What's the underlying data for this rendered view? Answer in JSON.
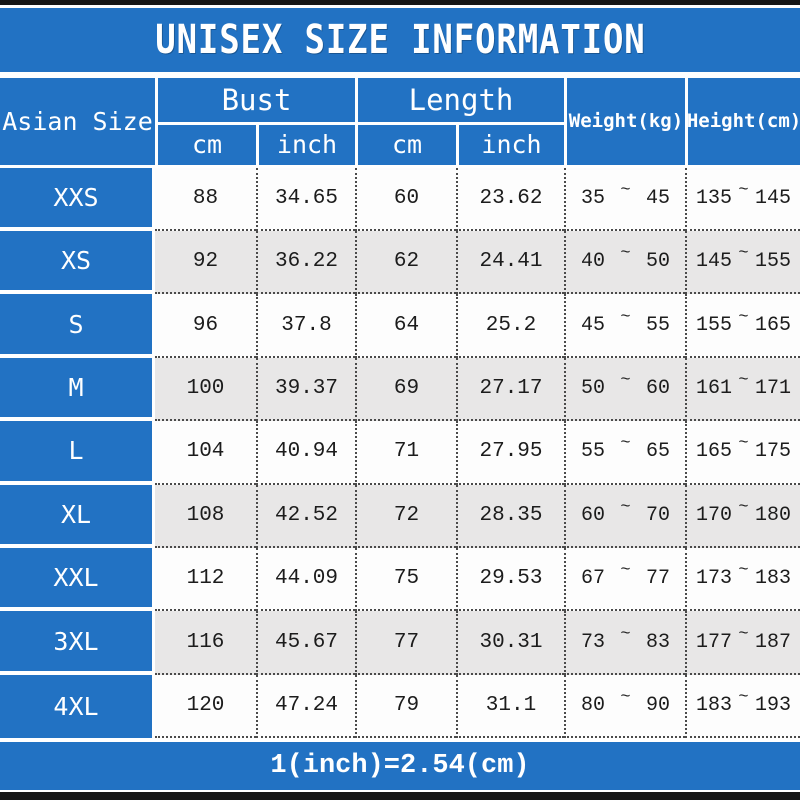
{
  "title": "UNISEX SIZE INFORMATION",
  "header": {
    "size_col": "Asian Size",
    "bust": "Bust",
    "length": "Length",
    "cm": "cm",
    "inch": "inch",
    "weight": "Weight(kg)",
    "height": "Height(cm)"
  },
  "tilde": "~",
  "rows": [
    {
      "size": "XXS",
      "bust_cm": "88",
      "bust_inch": "34.65",
      "length_cm": "60",
      "length_inch": "23.62",
      "weight_min": "35",
      "weight_max": "45",
      "height_min": "135",
      "height_max": "145"
    },
    {
      "size": "XS",
      "bust_cm": "92",
      "bust_inch": "36.22",
      "length_cm": "62",
      "length_inch": "24.41",
      "weight_min": "40",
      "weight_max": "50",
      "height_min": "145",
      "height_max": "155"
    },
    {
      "size": "S",
      "bust_cm": "96",
      "bust_inch": "37.8",
      "length_cm": "64",
      "length_inch": "25.2",
      "weight_min": "45",
      "weight_max": "55",
      "height_min": "155",
      "height_max": "165"
    },
    {
      "size": "M",
      "bust_cm": "100",
      "bust_inch": "39.37",
      "length_cm": "69",
      "length_inch": "27.17",
      "weight_min": "50",
      "weight_max": "60",
      "height_min": "161",
      "height_max": "171"
    },
    {
      "size": "L",
      "bust_cm": "104",
      "bust_inch": "40.94",
      "length_cm": "71",
      "length_inch": "27.95",
      "weight_min": "55",
      "weight_max": "65",
      "height_min": "165",
      "height_max": "175"
    },
    {
      "size": "XL",
      "bust_cm": "108",
      "bust_inch": "42.52",
      "length_cm": "72",
      "length_inch": "28.35",
      "weight_min": "60",
      "weight_max": "70",
      "height_min": "170",
      "height_max": "180"
    },
    {
      "size": "XXL",
      "bust_cm": "112",
      "bust_inch": "44.09",
      "length_cm": "75",
      "length_inch": "29.53",
      "weight_min": "67",
      "weight_max": "77",
      "height_min": "173",
      "height_max": "183"
    },
    {
      "size": "3XL",
      "bust_cm": "116",
      "bust_inch": "45.67",
      "length_cm": "77",
      "length_inch": "30.31",
      "weight_min": "73",
      "weight_max": "83",
      "height_min": "177",
      "height_max": "187"
    },
    {
      "size": "4XL",
      "bust_cm": "120",
      "bust_inch": "47.24",
      "length_cm": "79",
      "length_inch": "31.1",
      "weight_min": "80",
      "weight_max": "90",
      "height_min": "183",
      "height_max": "193"
    }
  ],
  "footer_note": "1(inch)=2.54(cm)",
  "colors": {
    "accent_blue": "#2272c3",
    "alt_row_gray": "#e8e7e7",
    "bar_black": "#161616"
  },
  "chart_data": {
    "type": "table",
    "title": "UNISEX SIZE INFORMATION",
    "columns": [
      "Asian Size",
      "Bust cm",
      "Bust inch",
      "Length cm",
      "Length inch",
      "Weight(kg)",
      "Height(cm)"
    ],
    "rows": [
      [
        "XXS",
        88,
        34.65,
        60,
        23.62,
        "35~45",
        "135~145"
      ],
      [
        "XS",
        92,
        36.22,
        62,
        24.41,
        "40~50",
        "145~155"
      ],
      [
        "S",
        96,
        37.8,
        64,
        25.2,
        "45~55",
        "155~165"
      ],
      [
        "M",
        100,
        39.37,
        69,
        27.17,
        "50~60",
        "161~171"
      ],
      [
        "L",
        104,
        40.94,
        71,
        27.95,
        "55~65",
        "165~175"
      ],
      [
        "XL",
        108,
        42.52,
        72,
        28.35,
        "60~70",
        "170~180"
      ],
      [
        "XXL",
        112,
        44.09,
        75,
        29.53,
        "67~77",
        "173~183"
      ],
      [
        "3XL",
        116,
        45.67,
        77,
        30.31,
        "73~83",
        "177~187"
      ],
      [
        "4XL",
        120,
        47.24,
        79,
        31.1,
        "80~90",
        "183~193"
      ]
    ],
    "footer": "1(inch)=2.54(cm)"
  }
}
